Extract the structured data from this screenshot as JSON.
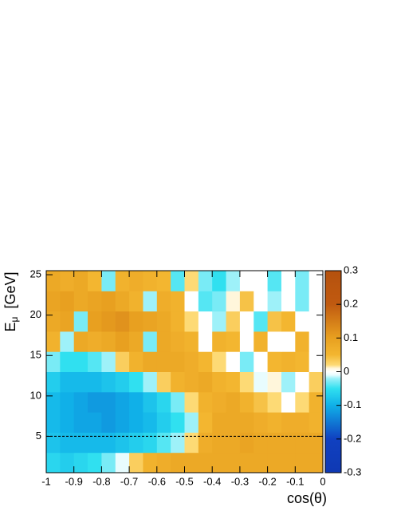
{
  "chart_data": {
    "type": "contour",
    "xlabel": "cos(θ)",
    "ylabel": {
      "main": "E",
      "sub": "μ",
      "unit": "[GeV]"
    },
    "xlim": [
      -1,
      0
    ],
    "ylim": [
      0.5,
      25.5
    ],
    "xticks": [
      -1,
      -0.9,
      -0.8,
      -0.7,
      -0.6,
      -0.5,
      -0.4,
      -0.3,
      -0.2,
      -0.1,
      0
    ],
    "yticks": [
      5,
      10,
      15,
      20,
      25
    ],
    "zlim": [
      -0.3,
      0.3
    ],
    "zticks": [
      -0.3,
      -0.2,
      -0.1,
      0,
      0.1,
      0.2,
      0.3
    ],
    "hline": 5,
    "x": [
      -0.975,
      -0.925,
      -0.875,
      -0.825,
      -0.775,
      -0.725,
      -0.675,
      -0.625,
      -0.575,
      -0.525,
      -0.475,
      -0.425,
      -0.375,
      -0.325,
      -0.275,
      -0.225,
      -0.175,
      -0.125,
      -0.075,
      -0.025
    ],
    "y": [
      1.75,
      4.25,
      6.75,
      9.25,
      11.75,
      14.25,
      16.75,
      19.25,
      21.75,
      24.25
    ],
    "z": [
      [
        -0.06,
        -0.07,
        -0.06,
        -0.05,
        -0.03,
        -0.01,
        0.03,
        0.06,
        0.07,
        0.08,
        0.08,
        0.08,
        0.08,
        0.08,
        0.08,
        0.08,
        0.08,
        0.08,
        0.08,
        0.08
      ],
      [
        -0.08,
        -0.09,
        -0.09,
        -0.09,
        -0.09,
        -0.08,
        -0.07,
        -0.06,
        -0.04,
        -0.02,
        0.02,
        0.07,
        0.08,
        0.08,
        0.09,
        0.08,
        0.08,
        0.08,
        0.08,
        0.08
      ],
      [
        -0.09,
        -0.1,
        -0.11,
        -0.11,
        -0.12,
        -0.11,
        -0.1,
        -0.09,
        -0.07,
        -0.05,
        -0.02,
        0.05,
        0.08,
        0.08,
        0.08,
        0.07,
        0.06,
        0.07,
        0.07,
        0.06
      ],
      [
        -0.09,
        -0.1,
        -0.11,
        -0.12,
        -0.12,
        -0.11,
        -0.1,
        -0.08,
        -0.06,
        -0.03,
        0.02,
        0.06,
        0.07,
        0.08,
        0.06,
        0.04,
        0.02,
        0,
        0.02,
        0.06
      ],
      [
        -0.07,
        -0.09,
        -0.09,
        -0.09,
        -0.08,
        -0.07,
        -0.05,
        -0.02,
        0.03,
        0.06,
        0.07,
        0.08,
        0.06,
        0.05,
        0.02,
        -0.01,
        0.01,
        -0.02,
        0,
        0.03
      ],
      [
        -0.03,
        -0.05,
        -0.05,
        -0.04,
        -0.02,
        0.03,
        0.06,
        0.08,
        0.08,
        0.08,
        0.07,
        0.05,
        0.02,
        0,
        -0.03,
        0,
        0.05,
        0.06,
        0.05,
        0
      ],
      [
        0.06,
        -0.02,
        0.08,
        0.07,
        0.08,
        0.1,
        0.08,
        -0.03,
        0.08,
        0.07,
        0.06,
        0,
        0.06,
        0.05,
        0,
        0.06,
        0,
        0,
        0.06,
        0
      ],
      [
        0.08,
        0.09,
        -0.03,
        0.1,
        0.11,
        0.12,
        0.1,
        0.09,
        0.08,
        0.06,
        0.02,
        0,
        -0.02,
        0.03,
        0,
        -0.04,
        0.04,
        0.05,
        0,
        0
      ],
      [
        0.09,
        0.1,
        0.08,
        0.09,
        0.1,
        0.08,
        0.06,
        -0.02,
        0.07,
        0.06,
        0,
        -0.04,
        -0.03,
        0.01,
        0.04,
        0,
        -0.02,
        0,
        -0.03,
        0
      ],
      [
        0.08,
        0.07,
        0.08,
        0.05,
        -0.03,
        0.06,
        0.07,
        0.06,
        0.05,
        -0.04,
        0.02,
        -0.03,
        -0.05,
        -0.02,
        0,
        0,
        -0.04,
        0,
        -0.03,
        0
      ]
    ]
  }
}
